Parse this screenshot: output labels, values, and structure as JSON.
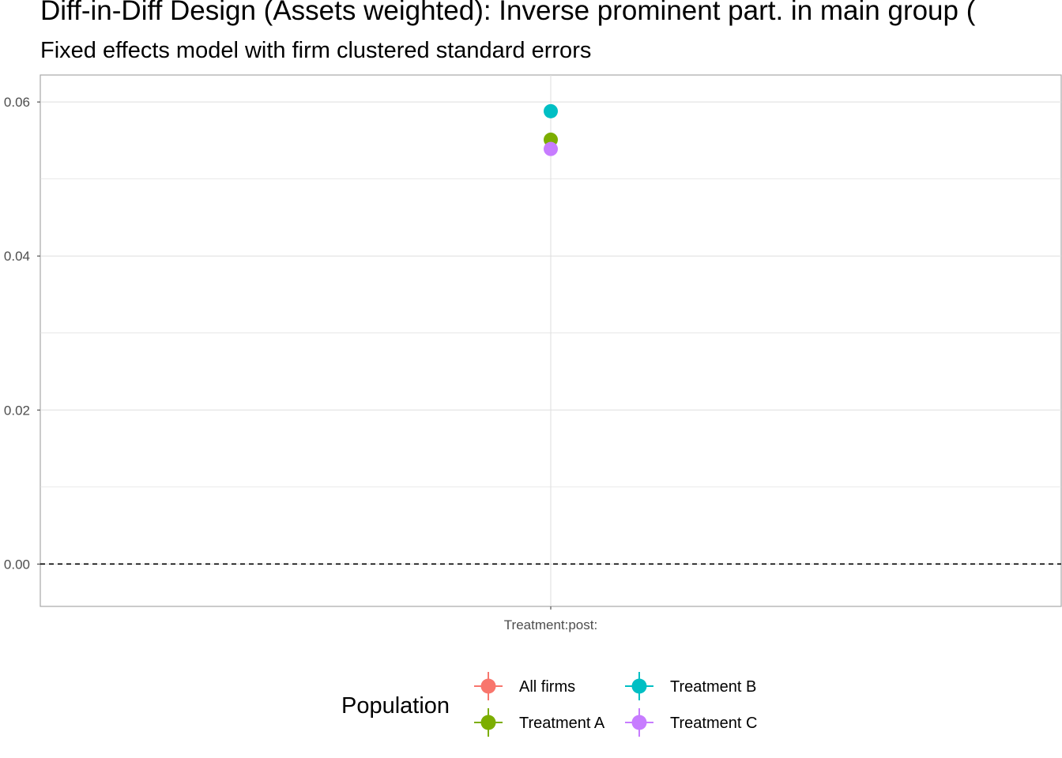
{
  "chart_data": {
    "type": "scatter",
    "title": "Diff-in-Diff Design (Assets weighted): Inverse prominent part. in main group (",
    "subtitle": "Fixed effects model with firm clustered standard errors",
    "xlabel": "",
    "ylabel": "",
    "categories": [
      "Treatment:post:"
    ],
    "y_ticks": [
      "0.00",
      "0.02",
      "0.04",
      "0.06"
    ],
    "ylim": [
      -0.0055,
      0.0635
    ],
    "reference_line": {
      "y": 0,
      "style": "dashed"
    },
    "grid": true,
    "legend": {
      "title": "Population",
      "placement": "bottom"
    },
    "series": [
      {
        "name": "All firms",
        "color": "#F8766D",
        "values": [
          null
        ]
      },
      {
        "name": "Treatment A",
        "color": "#7CAE00",
        "values": [
          0.0551
        ]
      },
      {
        "name": "Treatment B",
        "color": "#00BFC4",
        "values": [
          0.0588
        ]
      },
      {
        "name": "Treatment C",
        "color": "#C77CFF",
        "values": [
          0.0539
        ]
      }
    ]
  }
}
